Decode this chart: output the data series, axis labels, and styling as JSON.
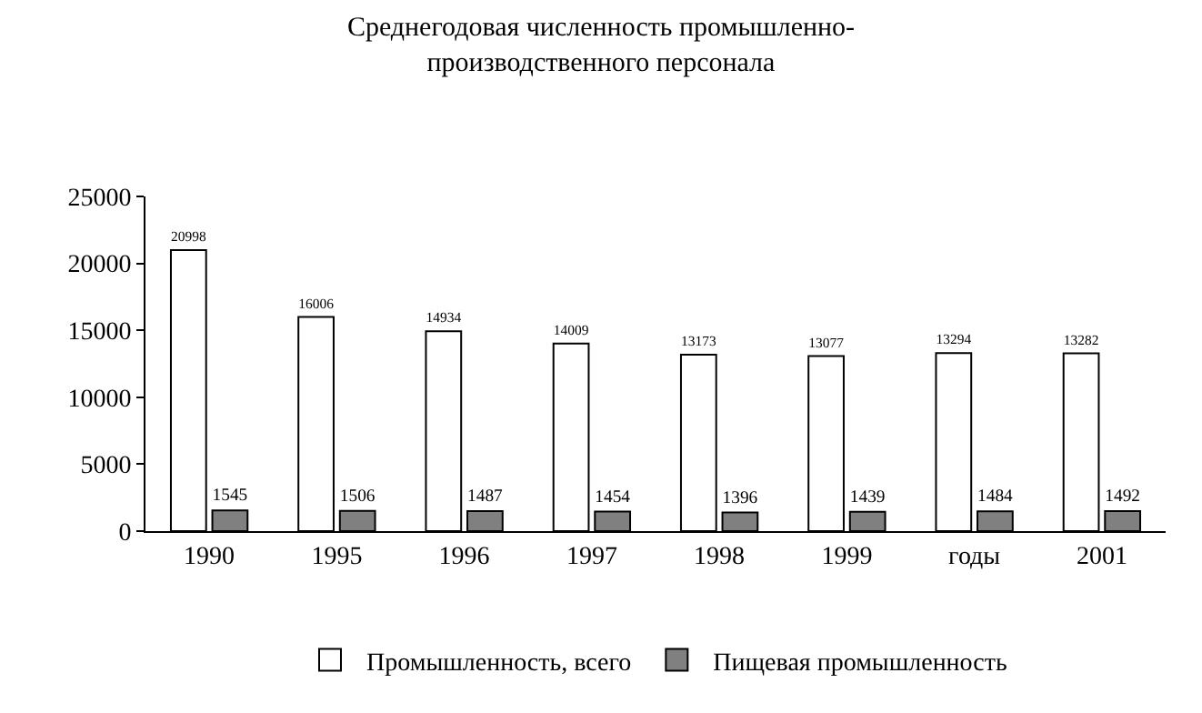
{
  "chart_data": {
    "type": "bar",
    "title": "Среднегодовая численность промышленно-\nпроизводственного персонала",
    "categories": [
      "1990",
      "1995",
      "1996",
      "1997",
      "1998",
      "1999",
      "годы",
      "2001"
    ],
    "series": [
      {
        "name": "Промышленность, всего",
        "color": "#ffffff",
        "values": [
          20998,
          16006,
          14934,
          14009,
          13173,
          13077,
          13294,
          13282
        ]
      },
      {
        "name": "Пищевая промышленность",
        "color": "#808080",
        "values": [
          1545,
          1506,
          1487,
          1454,
          1396,
          1439,
          1484,
          1492
        ]
      }
    ],
    "ylim": [
      0,
      25000
    ],
    "yticks": [
      0,
      5000,
      10000,
      15000,
      20000,
      25000
    ],
    "grid": false,
    "legend": "bottom",
    "data_labels": true
  }
}
